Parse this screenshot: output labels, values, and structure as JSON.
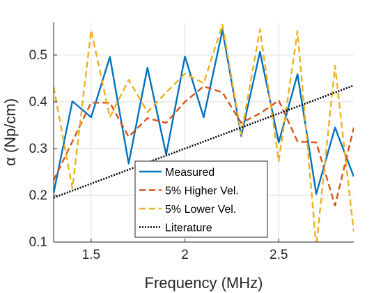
{
  "chart_data": {
    "type": "line",
    "xlabel": "Frequency (MHz)",
    "ylabel": "α (Np/cm)",
    "xlim": [
      1.3,
      2.9
    ],
    "ylim": [
      0.1,
      0.57
    ],
    "xticks": [
      1.5,
      2,
      2.5
    ],
    "yticks": [
      0.1,
      0.2,
      0.3,
      0.4,
      0.5
    ],
    "grid": true,
    "legend_position": "bottom-center",
    "series": [
      {
        "name": "Measured",
        "color": "#0072BD",
        "style": "solid",
        "x": [
          1.3,
          1.4,
          1.5,
          1.6,
          1.7,
          1.8,
          1.9,
          2.0,
          2.1,
          2.2,
          2.3,
          2.4,
          2.5,
          2.6,
          2.7,
          2.8,
          2.9
        ],
        "y": [
          0.205,
          0.401,
          0.367,
          0.496,
          0.268,
          0.473,
          0.287,
          0.497,
          0.367,
          0.553,
          0.327,
          0.507,
          0.313,
          0.459,
          0.203,
          0.345,
          0.24
        ]
      },
      {
        "name": "5% Higher Vel.",
        "color": "#D95319",
        "style": "dashed",
        "x": [
          1.3,
          1.4,
          1.5,
          1.6,
          1.7,
          1.8,
          1.9,
          2.0,
          2.1,
          2.2,
          2.3,
          2.4,
          2.5,
          2.6,
          2.7,
          2.8,
          2.9
        ],
        "y": [
          0.232,
          0.315,
          0.398,
          0.398,
          0.325,
          0.365,
          0.355,
          0.4,
          0.433,
          0.42,
          0.355,
          0.375,
          0.403,
          0.315,
          0.313,
          0.178,
          0.345
        ]
      },
      {
        "name": "5% Lower Vel.",
        "color": "#EDB120",
        "style": "dashed",
        "x": [
          1.3,
          1.4,
          1.5,
          1.6,
          1.7,
          1.8,
          1.9,
          2.0,
          2.1,
          2.2,
          2.3,
          2.4,
          2.5,
          2.6,
          2.7,
          2.8,
          2.9
        ],
        "y": [
          0.432,
          0.215,
          0.553,
          0.367,
          0.447,
          0.378,
          0.42,
          0.46,
          0.44,
          0.565,
          0.33,
          0.555,
          0.273,
          0.551,
          0.09,
          0.477,
          0.122
        ]
      },
      {
        "name": "Literature",
        "color": "#000000",
        "style": "dotted",
        "x": [
          1.3,
          2.9
        ],
        "y": [
          0.195,
          0.435
        ]
      }
    ]
  }
}
